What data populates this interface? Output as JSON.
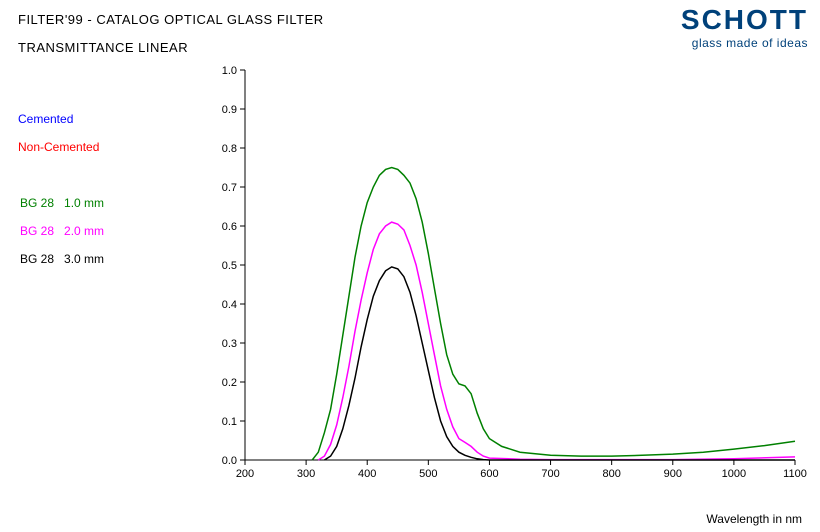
{
  "header": {
    "title1": "FILTER'99 - CATALOG OPTICAL GLASS FILTER",
    "title2": "TRANSMITTANCE LINEAR"
  },
  "brand": {
    "name": "SCHOTT",
    "tagline": "glass made of ideas",
    "color": "#00417a"
  },
  "legend_status": [
    {
      "label": "Cemented",
      "color": "#0000ff"
    },
    {
      "label": "Non-Cemented",
      "color": "#ff0000"
    }
  ],
  "legend_series": [
    {
      "name": "BG 28",
      "name_color": "#008000",
      "thickness": "1.0 mm",
      "thickness_color": "#008000"
    },
    {
      "name": "BG 28",
      "name_color": "#ff00ff",
      "thickness": "2.0 mm",
      "thickness_color": "#ff00ff"
    },
    {
      "name": "BG 28",
      "name_color": "#000000",
      "thickness": "3.0 mm",
      "thickness_color": "#000000"
    }
  ],
  "chart": {
    "type": "line",
    "background_color": "#ffffff",
    "axis_color": "#000000",
    "grid_color": "#000000",
    "font_family": "Arial",
    "tick_fontsize": 11,
    "axis_title_fontsize": 12,
    "line_width": 1.5,
    "x": {
      "label": "Wavelength in nm",
      "min": 200,
      "max": 1100,
      "tick_step": 100,
      "ticks": [
        200,
        300,
        400,
        500,
        600,
        700,
        800,
        900,
        1000,
        1100
      ]
    },
    "y": {
      "label": "",
      "min": 0.0,
      "max": 1.0,
      "tick_step": 0.1,
      "ticks": [
        0.0,
        0.1,
        0.2,
        0.3,
        0.4,
        0.5,
        0.6,
        0.7,
        0.8,
        0.9,
        1.0
      ],
      "tick_labels": [
        "0.0",
        "0.1",
        "0.2",
        "0.3",
        "0.4",
        "0.5",
        "0.6",
        "0.7",
        "0.8",
        "0.9",
        "1.0"
      ]
    },
    "series": [
      {
        "id": "bg28-1mm",
        "label": "BG 28 1.0 mm",
        "color": "#008000",
        "points": [
          [
            310,
            0.0
          ],
          [
            320,
            0.02
          ],
          [
            330,
            0.07
          ],
          [
            340,
            0.13
          ],
          [
            350,
            0.22
          ],
          [
            360,
            0.32
          ],
          [
            370,
            0.42
          ],
          [
            380,
            0.52
          ],
          [
            390,
            0.6
          ],
          [
            400,
            0.66
          ],
          [
            410,
            0.7
          ],
          [
            420,
            0.73
          ],
          [
            430,
            0.745
          ],
          [
            440,
            0.75
          ],
          [
            450,
            0.745
          ],
          [
            460,
            0.73
          ],
          [
            470,
            0.71
          ],
          [
            480,
            0.67
          ],
          [
            490,
            0.61
          ],
          [
            500,
            0.53
          ],
          [
            510,
            0.44
          ],
          [
            520,
            0.35
          ],
          [
            530,
            0.27
          ],
          [
            540,
            0.22
          ],
          [
            550,
            0.195
          ],
          [
            560,
            0.19
          ],
          [
            570,
            0.17
          ],
          [
            580,
            0.12
          ],
          [
            590,
            0.08
          ],
          [
            600,
            0.055
          ],
          [
            620,
            0.035
          ],
          [
            650,
            0.02
          ],
          [
            700,
            0.012
          ],
          [
            750,
            0.01
          ],
          [
            800,
            0.01
          ],
          [
            850,
            0.012
          ],
          [
            900,
            0.015
          ],
          [
            950,
            0.02
          ],
          [
            1000,
            0.028
          ],
          [
            1050,
            0.037
          ],
          [
            1100,
            0.048
          ]
        ]
      },
      {
        "id": "bg28-2mm",
        "label": "BG 28 2.0 mm",
        "color": "#ff00ff",
        "points": [
          [
            320,
            0.0
          ],
          [
            330,
            0.01
          ],
          [
            340,
            0.04
          ],
          [
            350,
            0.09
          ],
          [
            360,
            0.16
          ],
          [
            370,
            0.24
          ],
          [
            380,
            0.33
          ],
          [
            390,
            0.41
          ],
          [
            400,
            0.48
          ],
          [
            410,
            0.54
          ],
          [
            420,
            0.58
          ],
          [
            430,
            0.6
          ],
          [
            440,
            0.61
          ],
          [
            450,
            0.605
          ],
          [
            460,
            0.59
          ],
          [
            470,
            0.55
          ],
          [
            480,
            0.5
          ],
          [
            490,
            0.43
          ],
          [
            500,
            0.35
          ],
          [
            510,
            0.27
          ],
          [
            520,
            0.19
          ],
          [
            530,
            0.13
          ],
          [
            540,
            0.085
          ],
          [
            550,
            0.055
          ],
          [
            560,
            0.045
          ],
          [
            570,
            0.035
          ],
          [
            580,
            0.02
          ],
          [
            590,
            0.01
          ],
          [
            600,
            0.005
          ],
          [
            650,
            0.002
          ],
          [
            700,
            0.001
          ],
          [
            800,
            0.001
          ],
          [
            900,
            0.001
          ],
          [
            1000,
            0.003
          ],
          [
            1100,
            0.008
          ]
        ]
      },
      {
        "id": "bg28-3mm",
        "label": "BG 28 3.0 mm",
        "color": "#000000",
        "points": [
          [
            330,
            0.0
          ],
          [
            340,
            0.01
          ],
          [
            350,
            0.035
          ],
          [
            360,
            0.08
          ],
          [
            370,
            0.14
          ],
          [
            380,
            0.21
          ],
          [
            390,
            0.29
          ],
          [
            400,
            0.36
          ],
          [
            410,
            0.42
          ],
          [
            420,
            0.46
          ],
          [
            430,
            0.485
          ],
          [
            440,
            0.495
          ],
          [
            450,
            0.49
          ],
          [
            460,
            0.47
          ],
          [
            470,
            0.43
          ],
          [
            480,
            0.37
          ],
          [
            490,
            0.3
          ],
          [
            500,
            0.23
          ],
          [
            510,
            0.16
          ],
          [
            520,
            0.1
          ],
          [
            530,
            0.06
          ],
          [
            540,
            0.035
          ],
          [
            550,
            0.02
          ],
          [
            560,
            0.012
          ],
          [
            570,
            0.007
          ],
          [
            580,
            0.003
          ],
          [
            590,
            0.001
          ],
          [
            600,
            0.0
          ],
          [
            700,
            0.0
          ],
          [
            900,
            0.0
          ],
          [
            1100,
            0.0
          ]
        ]
      }
    ]
  }
}
